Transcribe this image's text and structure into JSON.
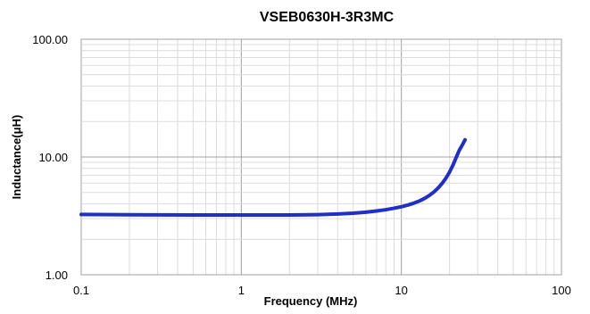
{
  "chart_data": {
    "type": "line",
    "title": "VSEB0630H-3R3MC",
    "xlabel": "Frequency  (MHz)",
    "ylabel": "Inductance(μH)",
    "x_scale": "log",
    "y_scale": "log",
    "xlim": [
      0.1,
      100
    ],
    "ylim": [
      1,
      100
    ],
    "x_ticks": [
      "0.1",
      "1",
      "10",
      "100"
    ],
    "x_tick_values": [
      0.1,
      1,
      10,
      100
    ],
    "y_ticks": [
      "1.00",
      "10.00",
      "100.00"
    ],
    "y_tick_values": [
      1,
      10,
      100
    ],
    "grid": true,
    "series": [
      {
        "color": "#1f2fc8",
        "x": [
          0.1,
          0.2,
          0.5,
          1,
          2,
          3,
          4,
          5,
          6,
          7,
          8,
          9,
          10,
          11,
          12,
          13,
          14,
          15,
          16,
          17,
          18,
          19,
          20,
          21,
          22,
          23,
          24,
          25
        ],
        "y": [
          3.25,
          3.23,
          3.22,
          3.22,
          3.22,
          3.24,
          3.28,
          3.33,
          3.4,
          3.48,
          3.57,
          3.67,
          3.78,
          3.91,
          4.06,
          4.24,
          4.46,
          4.73,
          5.06,
          5.47,
          5.98,
          6.62,
          7.45,
          8.52,
          9.9,
          11.4,
          12.6,
          14.0
        ]
      }
    ]
  }
}
